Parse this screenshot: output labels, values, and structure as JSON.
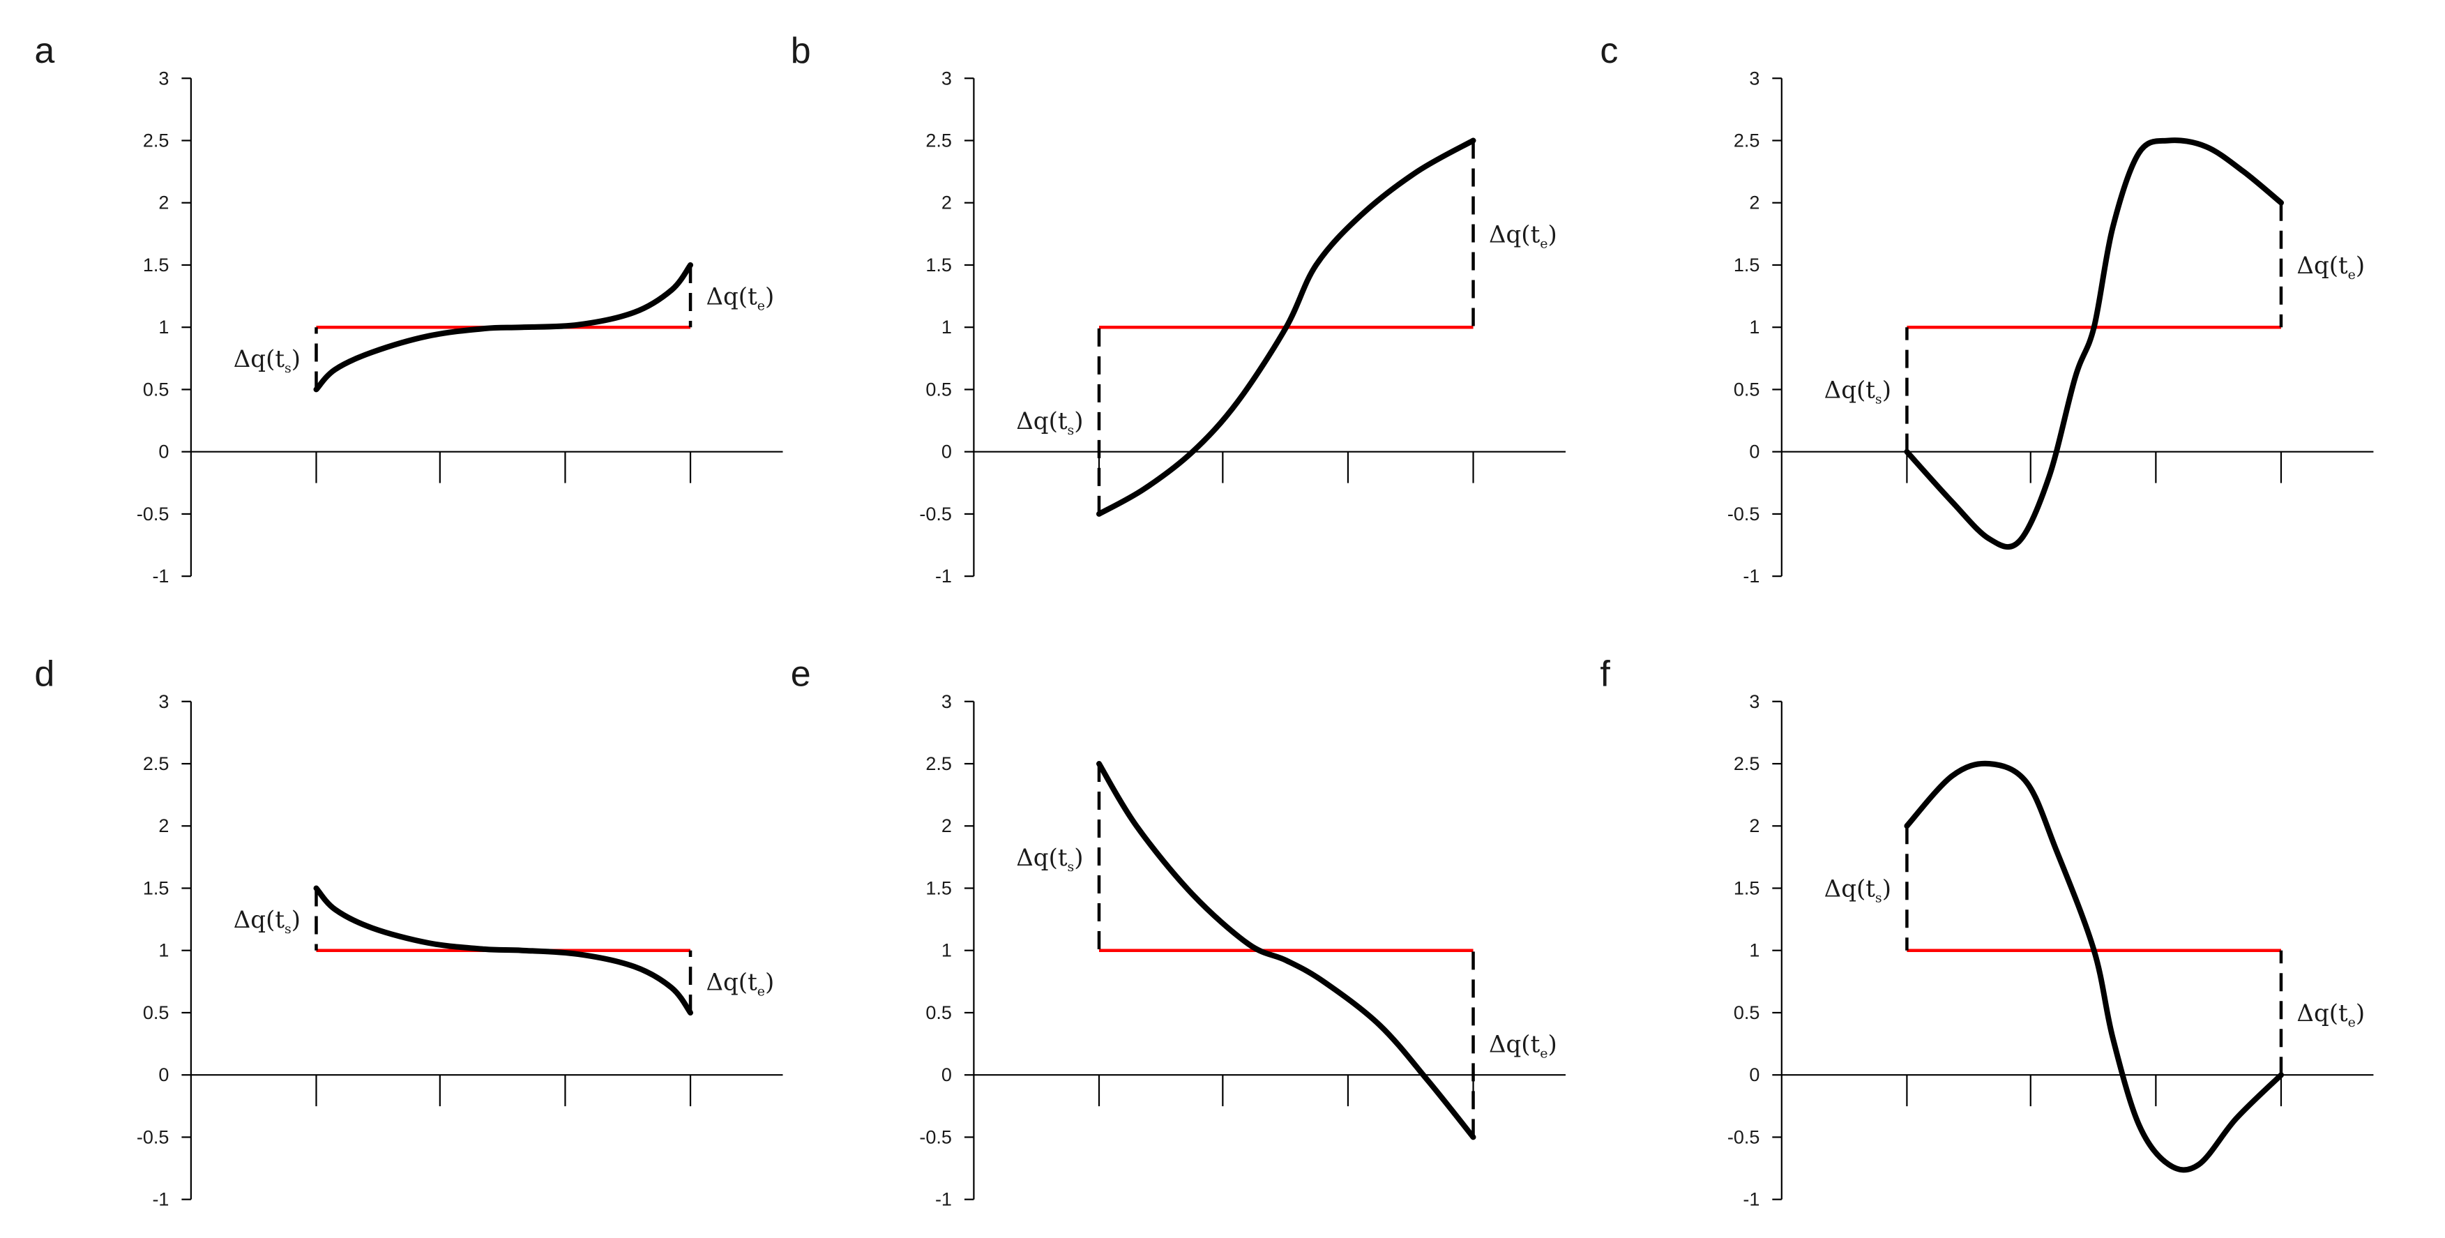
{
  "chart_data": [
    {
      "panel": "a",
      "type": "line",
      "ylim": [
        -1,
        3
      ],
      "yticks": [
        "3",
        "2.5",
        "2",
        "1.5",
        "1",
        "0.5",
        "0",
        "-0.5",
        "-1"
      ],
      "reference": {
        "value": 1,
        "color": "#ff0000"
      },
      "series": [
        {
          "name": "curve",
          "x": [
            0,
            0.05,
            0.15,
            0.3,
            0.45,
            0.55,
            0.7,
            0.85,
            0.95,
            1.0
          ],
          "values": [
            0.5,
            0.66,
            0.8,
            0.93,
            0.99,
            1.0,
            1.02,
            1.12,
            1.3,
            1.5
          ]
        }
      ],
      "annotations": [
        {
          "position": "start",
          "main": "Δq",
          "sub": "s"
        },
        {
          "position": "end",
          "main": "Δq",
          "sub": "e"
        }
      ]
    },
    {
      "panel": "b",
      "type": "line",
      "ylim": [
        -1,
        3
      ],
      "yticks": [
        "3",
        "2.5",
        "2",
        "1.5",
        "1",
        "0.5",
        "0",
        "-0.5",
        "-1"
      ],
      "reference": {
        "value": 1,
        "color": "#ff0000"
      },
      "series": [
        {
          "name": "curve",
          "x": [
            0,
            0.12,
            0.25,
            0.37,
            0.5,
            0.58,
            0.7,
            0.85,
            1.0
          ],
          "values": [
            -0.5,
            -0.3,
            0.0,
            0.4,
            1.0,
            1.5,
            1.9,
            2.25,
            2.5
          ]
        }
      ],
      "annotations": [
        {
          "position": "start",
          "main": "Δq",
          "sub": "s"
        },
        {
          "position": "end",
          "main": "Δq",
          "sub": "e"
        }
      ]
    },
    {
      "panel": "c",
      "type": "line",
      "ylim": [
        -1,
        3
      ],
      "yticks": [
        "3",
        "2.5",
        "2",
        "1.5",
        "1",
        "0.5",
        "0",
        "-0.5",
        "-1"
      ],
      "reference": {
        "value": 1,
        "color": "#ff0000"
      },
      "series": [
        {
          "name": "curve",
          "x": [
            0,
            0.12,
            0.22,
            0.3,
            0.38,
            0.45,
            0.5,
            0.55,
            0.62,
            0.7,
            0.8,
            0.9,
            1.0
          ],
          "values": [
            0.0,
            -0.4,
            -0.7,
            -0.72,
            -0.2,
            0.6,
            1.0,
            1.8,
            2.4,
            2.5,
            2.45,
            2.25,
            2.0
          ]
        }
      ],
      "annotations": [
        {
          "position": "start",
          "main": "Δq",
          "sub": "s"
        },
        {
          "position": "end",
          "main": "Δq",
          "sub": "e"
        }
      ]
    },
    {
      "panel": "d",
      "type": "line",
      "ylim": [
        -1,
        3
      ],
      "yticks": [
        "3",
        "2.5",
        "2",
        "1.5",
        "1",
        "0.5",
        "0",
        "-0.5",
        "-1"
      ],
      "reference": {
        "value": 1,
        "color": "#ff0000"
      },
      "series": [
        {
          "name": "curve",
          "x": [
            0,
            0.05,
            0.15,
            0.3,
            0.45,
            0.55,
            0.7,
            0.85,
            0.95,
            1.0
          ],
          "values": [
            1.5,
            1.33,
            1.18,
            1.06,
            1.01,
            1.0,
            0.97,
            0.87,
            0.7,
            0.5
          ]
        }
      ],
      "annotations": [
        {
          "position": "start",
          "main": "Δq",
          "sub": "s"
        },
        {
          "position": "end",
          "main": "Δq",
          "sub": "e"
        }
      ]
    },
    {
      "panel": "e",
      "type": "line",
      "ylim": [
        -1,
        3
      ],
      "yticks": [
        "3",
        "2.5",
        "2",
        "1.5",
        "1",
        "0.5",
        "0",
        "-0.5",
        "-1"
      ],
      "reference": {
        "value": 1,
        "color": "#ff0000"
      },
      "series": [
        {
          "name": "curve",
          "x": [
            0,
            0.1,
            0.25,
            0.4,
            0.5,
            0.6,
            0.75,
            0.88,
            1.0
          ],
          "values": [
            2.5,
            2.0,
            1.45,
            1.05,
            0.92,
            0.75,
            0.4,
            -0.05,
            -0.5
          ]
        }
      ],
      "annotations": [
        {
          "position": "start",
          "main": "Δq",
          "sub": "s"
        },
        {
          "position": "end",
          "main": "Δq",
          "sub": "e"
        }
      ]
    },
    {
      "panel": "f",
      "type": "line",
      "ylim": [
        -1,
        3
      ],
      "yticks": [
        "3",
        "2.5",
        "2",
        "1.5",
        "1",
        "0.5",
        "0",
        "-0.5",
        "-1"
      ],
      "reference": {
        "value": 1,
        "color": "#ff0000"
      },
      "series": [
        {
          "name": "curve",
          "x": [
            0,
            0.12,
            0.22,
            0.32,
            0.4,
            0.5,
            0.55,
            0.62,
            0.7,
            0.78,
            0.88,
            1.0
          ],
          "values": [
            2.0,
            2.4,
            2.5,
            2.35,
            1.8,
            1.0,
            0.3,
            -0.4,
            -0.72,
            -0.72,
            -0.35,
            0.0
          ]
        }
      ],
      "annotations": [
        {
          "position": "start",
          "main": "Δq",
          "sub": "s"
        },
        {
          "position": "end",
          "main": "Δq",
          "sub": "e"
        }
      ]
    }
  ]
}
